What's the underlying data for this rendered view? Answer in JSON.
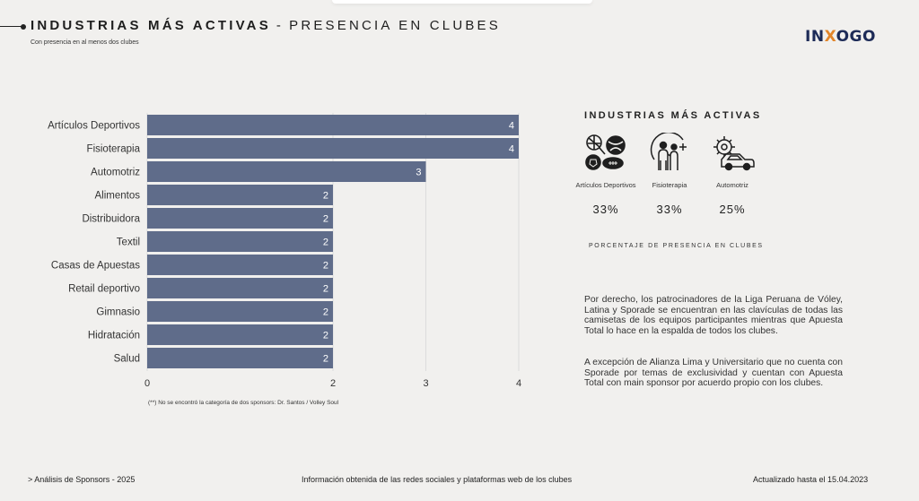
{
  "header": {
    "title_bold": "INDUSTRIAS MÁS ACTIVAS",
    "separator": "-",
    "title_light": "PRESENCIA EN CLUBES",
    "subtitle": "Con presencia en al menos dos clubes",
    "logo_a": "IN",
    "logo_x": "X",
    "logo_b": "OGO"
  },
  "chart_data": {
    "type": "bar",
    "orientation": "horizontal",
    "categories": [
      "Artículos Deportivos",
      "Fisioterapia",
      "Automotriz",
      "Alimentos",
      "Distribuidora",
      "Textil",
      "Casas de Apuestas",
      "Retail deportivo",
      "Gimnasio",
      "Hidratación",
      "Salud"
    ],
    "values": [
      4,
      4,
      3,
      2,
      2,
      2,
      2,
      2,
      2,
      2,
      2
    ],
    "x_ticks": [
      0,
      2,
      3,
      4
    ],
    "xlim": [
      0,
      4
    ],
    "grid": true,
    "bar_color": "#5f6c8a"
  },
  "footnote": "(**) No se encontró la categoría de dos sponsors: Dr. Santos / Volley Soul",
  "panel": {
    "title": "INDUSTRIAS MÁS ACTIVAS",
    "industries": [
      {
        "label": "Artículos Deportivos",
        "pct": "33%",
        "icon": "sports-balls-icon"
      },
      {
        "label": "Fisioterapia",
        "pct": "33%",
        "icon": "physiotherapy-icon"
      },
      {
        "label": "Automotriz",
        "pct": "25%",
        "icon": "car-gear-icon"
      }
    ],
    "caption": "PORCENTAJE DE PRESENCIA EN CLUBES",
    "paragraph1": "Por derecho, los patrocinadores de la Liga Peruana de Vóley, Latina y Sporade se encuentran en las clavículas de todas las camisetas de los equipos participantes mientras que Apuesta Total lo hace en la espalda de todos los clubes.",
    "paragraph2": "A excepción de Alianza Lima y Universitario que no cuenta con Sporade por temas de exclusividad y cuentan con Apuesta Total con main sponsor por acuerdo propio con los clubes."
  },
  "footer": {
    "left": "> Análisis de Sponsors - 2025",
    "center": "Información obtenida de las redes sociales y plataformas web de los clubes",
    "right": "Actualizado hasta el 15.04.2023"
  }
}
